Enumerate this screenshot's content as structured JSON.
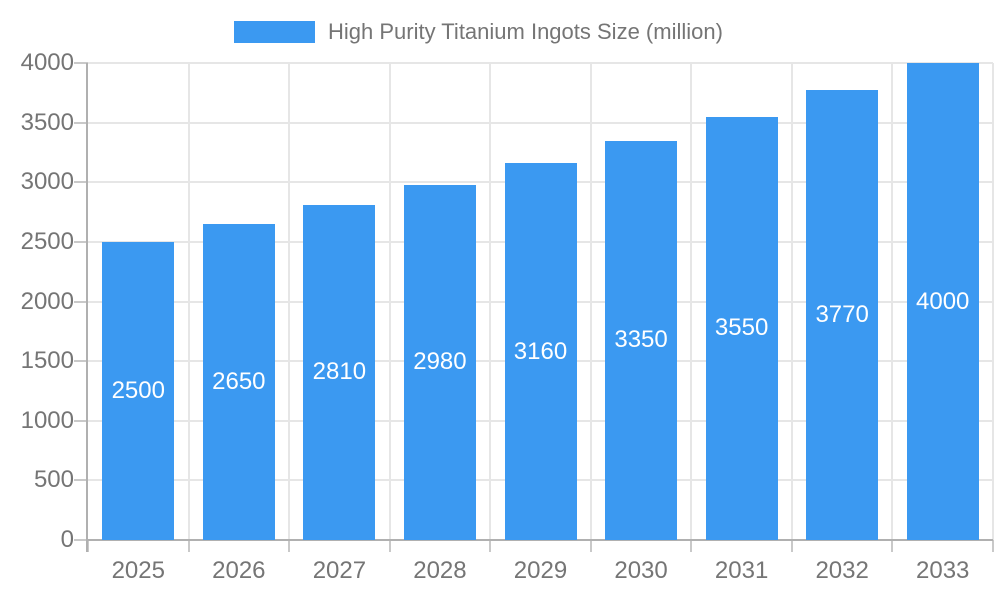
{
  "legend": {
    "label": "High Purity Titanium Ingots Size (million)"
  },
  "colors": {
    "bar": "#3b99f1",
    "axis_text": "#757575",
    "value_label": "#ffffff",
    "gridline": "#e6e6e6",
    "tick": "#c9c9c9",
    "axis_line": "#b0b0b0",
    "background": "#ffffff"
  },
  "chart_data": {
    "type": "bar",
    "title": "High Purity Titanium Ingots Size (million)",
    "categories": [
      "2025",
      "2026",
      "2027",
      "2028",
      "2029",
      "2030",
      "2031",
      "2032",
      "2033"
    ],
    "values": [
      2500,
      2650,
      2810,
      2980,
      3160,
      3350,
      3550,
      3770,
      4000
    ],
    "value_labels": [
      "2500",
      "2650",
      "2810",
      "2980",
      "3160",
      "3350",
      "3550",
      "3770",
      "4000"
    ],
    "xlabel": "",
    "ylabel": "",
    "ylim": [
      0,
      4000
    ],
    "yticks": [
      0,
      500,
      1000,
      1500,
      2000,
      2500,
      3000,
      3500,
      4000
    ],
    "ytick_labels": [
      "0",
      "500",
      "1000",
      "1500",
      "2000",
      "2500",
      "3000",
      "3500",
      "4000"
    ],
    "grid": true,
    "legend_position": "top",
    "value_label_position": "inside-center"
  }
}
